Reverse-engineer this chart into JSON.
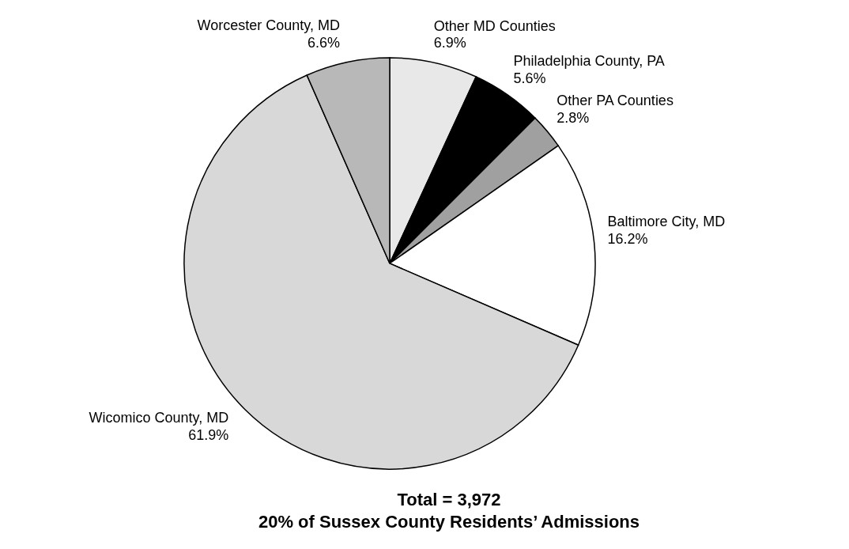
{
  "chart_data": {
    "type": "pie",
    "title": "Total = 3,972",
    "subtitle": "20% of Sussex County Residents’ Admissions",
    "categories": [
      "Other MD Counties",
      "Philadelphia County, PA",
      "Other PA Counties",
      "Baltimore City, MD",
      "Wicomico County, MD",
      "Worcester County, MD"
    ],
    "values": [
      6.9,
      5.6,
      2.8,
      16.2,
      61.9,
      6.6
    ],
    "value_labels": [
      "6.9%",
      "5.6%",
      "2.8%",
      "16.2%",
      "61.9%",
      "6.6%"
    ],
    "colors": [
      "#e8e8e8",
      "#000000",
      "#a0a0a0",
      "#ffffff",
      "#d8d8d8",
      "#b8b8b8"
    ],
    "legend": false
  }
}
